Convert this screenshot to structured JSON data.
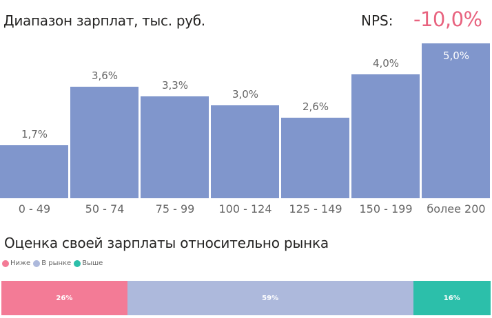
{
  "header": {
    "title": "Диапазон зарплат, тыс. руб.",
    "nps_label": "NPS:",
    "nps_value": "-10,0%",
    "nps_color": "#e8637f"
  },
  "bars": [
    {
      "category": "0 - 49",
      "label": "1,7%",
      "value": 1.7
    },
    {
      "category": "50 - 74",
      "label": "3,6%",
      "value": 3.6
    },
    {
      "category": "75 - 99",
      "label": "3,3%",
      "value": 3.3
    },
    {
      "category": "100 - 124",
      "label": "3,0%",
      "value": 3.0
    },
    {
      "category": "125 - 149",
      "label": "2,6%",
      "value": 2.6
    },
    {
      "category": "150 - 199",
      "label": "4,0%",
      "value": 4.0
    },
    {
      "category": "более 200",
      "label": "5,0%",
      "value": 5.0
    }
  ],
  "section2": {
    "title": "Оценка своей зарплаты относительно рынка",
    "legend": [
      {
        "label": "Ниже",
        "color": "#f37b96"
      },
      {
        "label": "В рынке",
        "color": "#adb9dc"
      },
      {
        "label": "Выше",
        "color": "#2cbfaa"
      }
    ],
    "segments": [
      {
        "label": "26%",
        "value": 26,
        "color": "#f37b96"
      },
      {
        "label": "59%",
        "value": 59,
        "color": "#adb9dc"
      },
      {
        "label": "16%",
        "value": 16,
        "color": "#2cbfaa"
      }
    ]
  },
  "chart_data": [
    {
      "type": "bar",
      "title": "Диапазон зарплат, тыс. руб.",
      "categories": [
        "0 - 49",
        "50 - 74",
        "75 - 99",
        "100 - 124",
        "125 - 149",
        "150 - 199",
        "более 200"
      ],
      "values": [
        1.7,
        3.6,
        3.3,
        3.0,
        2.6,
        4.0,
        5.0
      ],
      "data_labels": [
        "1,7%",
        "3,6%",
        "3,3%",
        "3,0%",
        "2,6%",
        "4,0%",
        "5,0%"
      ],
      "xlabel": "",
      "ylabel": "",
      "ylim": [
        0,
        5.0
      ],
      "grid": false,
      "annotation": "NPS: -10,0%",
      "bar_color": "#8096cc"
    },
    {
      "type": "bar",
      "orientation": "horizontal-stacked-100",
      "title": "Оценка своей зарплаты относительно рынка",
      "categories": [
        ""
      ],
      "series": [
        {
          "name": "Ниже",
          "values": [
            26
          ],
          "color": "#f37b96"
        },
        {
          "name": "В рынке",
          "values": [
            59
          ],
          "color": "#adb9dc"
        },
        {
          "name": "Выше",
          "values": [
            16
          ],
          "color": "#2cbfaa"
        }
      ],
      "legend_position": "top-left"
    }
  ]
}
